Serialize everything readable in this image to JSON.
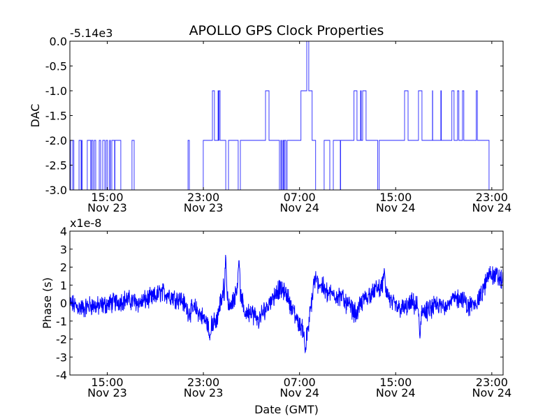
{
  "chart_data": [
    {
      "type": "line",
      "title": "APOLLO GPS Clock Properties",
      "xlabel": "",
      "ylabel": "DAC",
      "y_offset_label": "-5.14e3",
      "ylim": [
        -3.0,
        0.0
      ],
      "xlim_hours_from_nov23_0000": [
        11.89,
        47.94
      ],
      "yticks": [
        0.0,
        -0.5,
        -1.0,
        -1.5,
        -2.0,
        -2.5,
        -3.0
      ],
      "ytick_labels": [
        "0.0",
        "-0.5",
        "-1.0",
        "-1.5",
        "-2.0",
        "-2.5",
        "-3.0"
      ],
      "xticks_hours": [
        15,
        23,
        31,
        39,
        47
      ],
      "xtick_labels": [
        [
          "15:00",
          "Nov 23"
        ],
        [
          "23:00",
          "Nov 23"
        ],
        [
          "07:00",
          "Nov 24"
        ],
        [
          "15:00",
          "Nov 24"
        ],
        [
          "23:00",
          "Nov 24"
        ]
      ],
      "color": "#0000ff",
      "step_series": [
        [
          11.89,
          -2
        ],
        [
          11.95,
          -3
        ],
        [
          12.12,
          -2
        ],
        [
          12.22,
          -3
        ],
        [
          12.65,
          -2
        ],
        [
          12.82,
          -3
        ],
        [
          12.88,
          -2
        ],
        [
          12.91,
          -3
        ],
        [
          13.34,
          -2
        ],
        [
          13.63,
          -3
        ],
        [
          13.69,
          -2
        ],
        [
          13.81,
          -3
        ],
        [
          13.92,
          -2
        ],
        [
          14.04,
          -3
        ],
        [
          14.33,
          -2
        ],
        [
          14.45,
          -3
        ],
        [
          14.62,
          -2
        ],
        [
          14.8,
          -3
        ],
        [
          14.91,
          -2
        ],
        [
          15.03,
          -3
        ],
        [
          15.2,
          -2
        ],
        [
          15.26,
          -3
        ],
        [
          15.38,
          -2
        ],
        [
          15.61,
          -3
        ],
        [
          15.64,
          -2
        ],
        [
          16.13,
          -3
        ],
        [
          17.06,
          -2
        ],
        [
          17.24,
          -3
        ],
        [
          21.72,
          -2
        ],
        [
          21.83,
          -3
        ],
        [
          22.99,
          -2
        ],
        [
          23.75,
          -1
        ],
        [
          23.92,
          -2
        ],
        [
          24.22,
          -1
        ],
        [
          24.27,
          -2
        ],
        [
          24.3,
          -1
        ],
        [
          24.39,
          -2
        ],
        [
          24.86,
          -3
        ],
        [
          25.09,
          -2
        ],
        [
          25.9,
          -3
        ],
        [
          26.08,
          -2
        ],
        [
          28.17,
          -1
        ],
        [
          28.46,
          -2
        ],
        [
          29.33,
          -3
        ],
        [
          29.45,
          -2
        ],
        [
          29.51,
          -3
        ],
        [
          29.62,
          -2
        ],
        [
          29.68,
          -3
        ],
        [
          29.74,
          -2
        ],
        [
          29.86,
          -3
        ],
        [
          29.97,
          -2
        ],
        [
          31.12,
          -1
        ],
        [
          31.6,
          0
        ],
        [
          31.77,
          -1
        ],
        [
          32.05,
          -2
        ],
        [
          32.34,
          -3
        ],
        [
          33.05,
          -2
        ],
        [
          33.52,
          -3
        ],
        [
          33.81,
          -2
        ],
        [
          34.39,
          -3
        ],
        [
          34.42,
          -2
        ],
        [
          35.53,
          -1
        ],
        [
          35.78,
          -2
        ],
        [
          36.08,
          -1
        ],
        [
          36.13,
          -2
        ],
        [
          36.25,
          -1
        ],
        [
          36.54,
          -2
        ],
        [
          37.51,
          -3
        ],
        [
          37.63,
          -2
        ],
        [
          39.74,
          -1
        ],
        [
          40.03,
          -2
        ],
        [
          40.9,
          -1
        ],
        [
          41.19,
          -2
        ],
        [
          42.06,
          -1
        ],
        [
          42.08,
          -2
        ],
        [
          42.76,
          -1
        ],
        [
          42.8,
          -2
        ],
        [
          43.68,
          -1
        ],
        [
          43.86,
          -2
        ],
        [
          44.15,
          -1
        ],
        [
          44.26,
          -2
        ],
        [
          44.56,
          -1
        ],
        [
          44.67,
          -2
        ],
        [
          45.71,
          -1
        ],
        [
          45.8,
          -2
        ],
        [
          46.77,
          -3
        ],
        [
          47.94,
          -3
        ]
      ]
    },
    {
      "type": "line",
      "title": "",
      "xlabel": "Date (GMT)",
      "ylabel": "Phase (s)",
      "y_offset_label": "x1e-8",
      "ylim": [
        -4,
        4
      ],
      "xlim_hours_from_nov23_0000": [
        11.89,
        47.94
      ],
      "yticks": [
        4,
        3,
        2,
        1,
        0,
        -1,
        -2,
        -3,
        -4
      ],
      "ytick_labels": [
        "4",
        "3",
        "2",
        "1",
        "0",
        "-1",
        "-2",
        "-3",
        "-4"
      ],
      "xticks_hours": [
        15,
        23,
        31,
        39,
        47
      ],
      "xtick_labels": [
        [
          "15:00",
          "Nov 23"
        ],
        [
          "23:00",
          "Nov 23"
        ],
        [
          "07:00",
          "Nov 24"
        ],
        [
          "15:00",
          "Nov 24"
        ],
        [
          "23:00",
          "Nov 24"
        ]
      ],
      "color": "#0000ff",
      "trend_start_hour": 11.89,
      "trend_step_hours": 0.5814,
      "trend_values": [
        0,
        -0.2,
        -0.3,
        -0.1,
        -0.2,
        -0.1,
        0,
        0.1,
        0.2,
        0.1,
        0,
        0.2,
        0.3,
        0.6,
        0.5,
        0.3,
        0.2,
        -0.5,
        -0.3,
        -0.8,
        -1.3,
        -1.0,
        0.8,
        -0.3,
        1.0,
        -0.5,
        -0.5,
        -1.0,
        -0.3,
        0.3,
        0.8,
        0.5,
        -0.5,
        -1.3,
        -1.8,
        1.3,
        1.0,
        0.5,
        0.5,
        0.3,
        -0.2,
        -0.6,
        0.2,
        0.5,
        0.8,
        1.0,
        0,
        -0.3,
        -0.3,
        0,
        -0.3,
        -0.5,
        -0.2,
        -0.2,
        0,
        0.2,
        0.3,
        -0.2,
        0,
        0.5,
        1.7,
        1.5,
        1.2
      ],
      "noise_amplitude": 0.45,
      "spikes": [
        [
          23.52,
          -2.2
        ],
        [
          24.86,
          3.2
        ],
        [
          25.96,
          3.2
        ],
        [
          31.48,
          -3.1
        ],
        [
          38.05,
          2.0
        ],
        [
          41.02,
          -2.5
        ]
      ]
    }
  ]
}
